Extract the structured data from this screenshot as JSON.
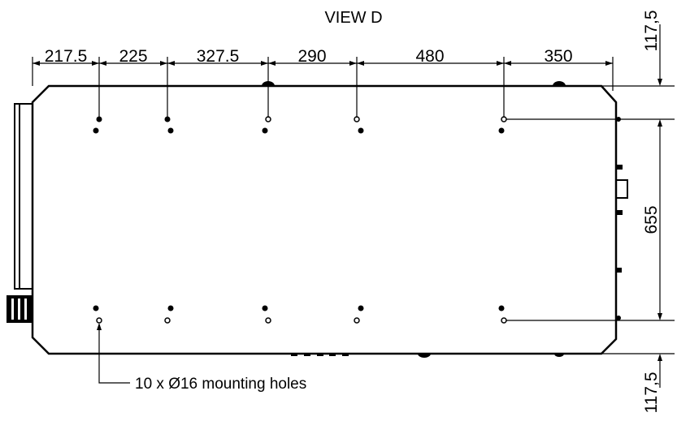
{
  "view_title": "VIEW D",
  "horizontal_dimensions": [
    "217.5",
    "225",
    "327.5",
    "290",
    "480",
    "350"
  ],
  "vertical_dimensions": {
    "top_offset": "117,5",
    "hole_spacing": "655",
    "bottom_offset": "117,5"
  },
  "callout": "10 x Ø16 mounting holes",
  "colors": {
    "line": "#000000",
    "background": "#ffffff"
  }
}
